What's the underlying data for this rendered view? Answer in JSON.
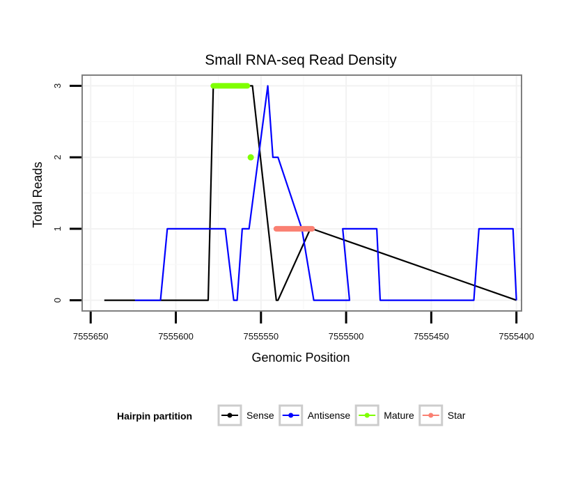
{
  "chart_data": {
    "type": "line",
    "title": "Small RNA-seq Read Density",
    "xlabel": "Genomic Position",
    "ylabel": "Total Reads",
    "xlim": [
      7555655,
      7555397
    ],
    "x_reversed": true,
    "ylim": [
      -0.15,
      3.15
    ],
    "xticks": [
      7555650,
      7555600,
      7555550,
      7555500,
      7555450,
      7555400
    ],
    "xtick_labels": [
      "7555650",
      "7555600",
      "7555550",
      "7555500",
      "7555450",
      "7555400"
    ],
    "yticks": [
      0,
      1,
      2,
      3
    ],
    "ytick_labels": [
      "0",
      "1",
      "2",
      "3"
    ],
    "grid": true,
    "legend_title": "Hairpin partition",
    "legend_position": "bottom",
    "series": [
      {
        "name": "Sense",
        "color": "#000000",
        "kind": "line",
        "x": [
          7555642,
          7555581,
          7555578,
          7555559,
          7555558,
          7555555,
          7555541,
          7555540,
          7555521,
          7555520,
          7555400
        ],
        "y": [
          0,
          0,
          3,
          3,
          3,
          3,
          0,
          0,
          1,
          1,
          0
        ]
      },
      {
        "name": "Antisense",
        "color": "#0000FF",
        "kind": "line",
        "x": [
          7555624,
          7555609,
          7555605,
          7555571,
          7555566,
          7555564,
          7555561,
          7555557,
          7555546,
          7555543,
          7555540,
          7555526,
          7555519,
          7555498,
          7555502,
          7555482,
          7555480,
          7555425,
          7555422,
          7555402,
          7555400
        ],
        "y": [
          0,
          0,
          1,
          1,
          0,
          0,
          1,
          1,
          3,
          2,
          2,
          1,
          0,
          0,
          1,
          1,
          0,
          0,
          1,
          1,
          0
        ]
      },
      {
        "name": "Mature",
        "color": "#7FFF00",
        "kind": "thick",
        "segments": [
          {
            "x": [
              7555578,
              7555558
            ],
            "y": [
              3,
              3
            ]
          }
        ],
        "points": [
          {
            "x": 7555556,
            "y": 2
          }
        ]
      },
      {
        "name": "Star",
        "color": "#FA8072",
        "kind": "thick",
        "segments": [
          {
            "x": [
              7555541,
              7555520
            ],
            "y": [
              1,
              1
            ]
          }
        ],
        "points": []
      }
    ]
  }
}
